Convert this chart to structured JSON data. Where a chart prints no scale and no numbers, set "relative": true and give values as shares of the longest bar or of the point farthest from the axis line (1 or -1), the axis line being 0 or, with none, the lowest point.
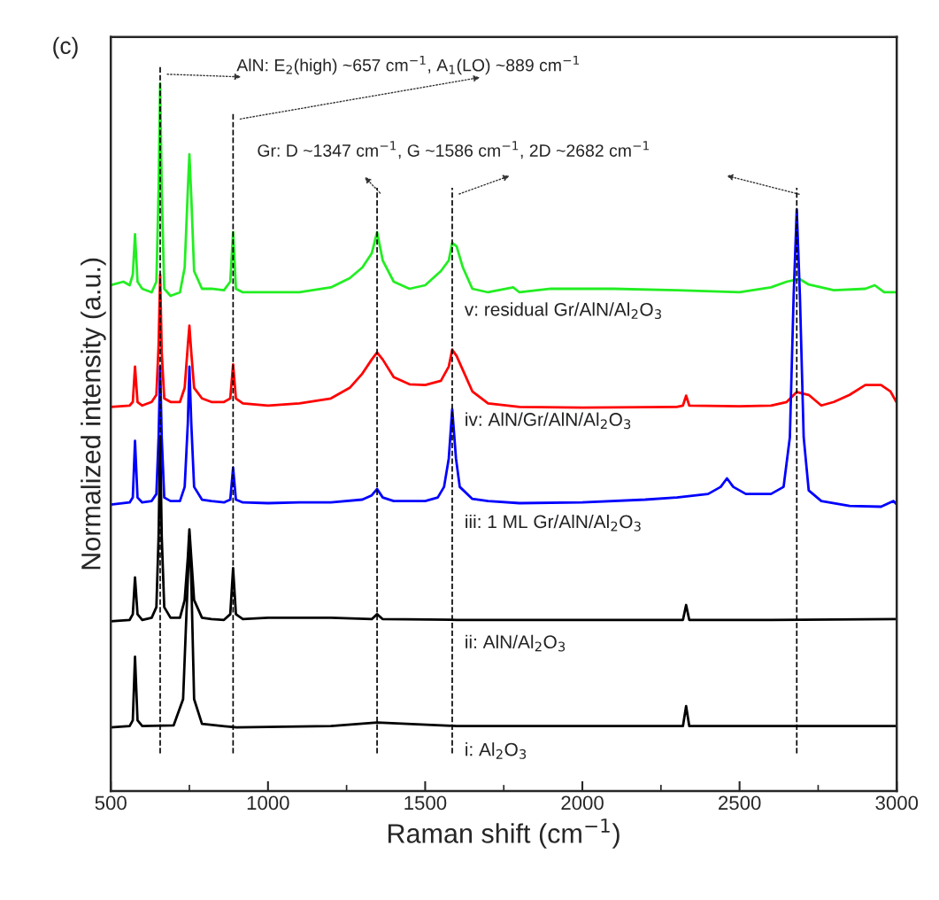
{
  "chart_data": {
    "type": "line",
    "relative": true,
    "xlabel": "Raman shift (cm$^{−1}$)",
    "ylabel": "Normalized intensity (a.u.)",
    "xlim": [
      500,
      3000
    ],
    "xticks": [
      500,
      1000,
      1500,
      2000,
      2500,
      3000
    ],
    "tick_labels": "x",
    "annotations": [
      "(c)",
      "AlN: E$_{2}$(high) ~657 cm$^{−1}$, A$_{1}$(LO) ~889 cm$^{−1}$",
      "Gr: D ~1347 cm$^{−1}$, G ~1586 cm$^{−1}$, 2D ~2682 cm$^{−1}$"
    ],
    "ref_lines": [
      {
        "axis": "x",
        "value": 657,
        "line_style": "dashed",
        "color": "#000000"
      },
      {
        "axis": "x",
        "value": 889,
        "line_style": "dashed",
        "color": "#000000"
      },
      {
        "axis": "x",
        "value": 1347,
        "line_style": "dashed",
        "color": "#000000"
      },
      {
        "axis": "x",
        "value": 1586,
        "line_style": "dashed",
        "color": "#000000"
      },
      {
        "axis": "x",
        "value": 2682,
        "line_style": "dashed",
        "color": "#000000"
      }
    ],
    "series": [
      {
        "name": "v: residual Gr/AlN/Al$_{2}$O$_{3}$",
        "color": "#22ee22",
        "x": [
          500,
          540,
          560,
          570,
          577,
          585,
          600,
          630,
          645,
          652,
          657,
          662,
          670,
          690,
          720,
          735,
          745,
          750,
          756,
          765,
          790,
          820,
          860,
          880,
          889,
          898,
          920,
          1000,
          1100,
          1200,
          1260,
          1300,
          1330,
          1347,
          1365,
          1400,
          1450,
          1500,
          1550,
          1575,
          1586,
          1600,
          1620,
          1650,
          1700,
          1780,
          1800,
          1900,
          2100,
          2300,
          2500,
          2600,
          2650,
          2690,
          2720,
          2800,
          2900,
          2930,
          2960,
          3000
        ],
        "values": [
          0.715,
          0.72,
          0.715,
          0.73,
          0.787,
          0.72,
          0.71,
          0.705,
          0.72,
          0.85,
          1.0,
          0.85,
          0.71,
          0.7,
          0.705,
          0.74,
          0.85,
          0.9,
          0.84,
          0.735,
          0.71,
          0.71,
          0.708,
          0.72,
          0.79,
          0.71,
          0.705,
          0.705,
          0.705,
          0.712,
          0.725,
          0.74,
          0.76,
          0.79,
          0.75,
          0.72,
          0.71,
          0.715,
          0.735,
          0.75,
          0.775,
          0.77,
          0.74,
          0.71,
          0.705,
          0.712,
          0.705,
          0.71,
          0.71,
          0.708,
          0.705,
          0.712,
          0.72,
          0.724,
          0.716,
          0.708,
          0.71,
          0.715,
          0.705,
          0.705
        ]
      },
      {
        "name": "iv: AlN/Gr/AlN/Al$_{2}$O$_{3}$",
        "color": "#ff0000",
        "x": [
          500,
          560,
          570,
          577,
          585,
          600,
          630,
          645,
          652,
          657,
          662,
          670,
          690,
          720,
          735,
          745,
          750,
          756,
          765,
          790,
          820,
          860,
          880,
          889,
          898,
          920,
          1000,
          1100,
          1200,
          1260,
          1300,
          1330,
          1347,
          1365,
          1400,
          1450,
          1500,
          1550,
          1575,
          1586,
          1600,
          1620,
          1650,
          1700,
          1800,
          2000,
          2300,
          2320,
          2330,
          2340,
          2500,
          2600,
          2650,
          2682,
          2720,
          2760,
          2800,
          2850,
          2900,
          2950,
          2980,
          3000
        ],
        "values": [
          0.543,
          0.545,
          0.55,
          0.6,
          0.55,
          0.545,
          0.55,
          0.56,
          0.63,
          0.73,
          0.62,
          0.555,
          0.55,
          0.55,
          0.57,
          0.63,
          0.658,
          0.62,
          0.57,
          0.555,
          0.55,
          0.55,
          0.555,
          0.603,
          0.555,
          0.548,
          0.545,
          0.548,
          0.555,
          0.57,
          0.59,
          0.61,
          0.62,
          0.61,
          0.585,
          0.575,
          0.574,
          0.58,
          0.6,
          0.624,
          0.615,
          0.595,
          0.565,
          0.548,
          0.543,
          0.542,
          0.543,
          0.545,
          0.559,
          0.545,
          0.544,
          0.545,
          0.55,
          0.564,
          0.56,
          0.545,
          0.55,
          0.56,
          0.574,
          0.574,
          0.565,
          0.549
        ]
      },
      {
        "name": "iii: 1 ML Gr/AlN/Al$_{2}$O$_{3}$",
        "color": "#0000ff",
        "x": [
          500,
          560,
          570,
          577,
          585,
          600,
          630,
          645,
          652,
          657,
          662,
          670,
          690,
          720,
          735,
          745,
          750,
          756,
          765,
          790,
          820,
          860,
          880,
          889,
          898,
          920,
          1000,
          1100,
          1200,
          1300,
          1330,
          1347,
          1365,
          1400,
          1500,
          1540,
          1560,
          1575,
          1586,
          1598,
          1610,
          1650,
          1700,
          1800,
          2000,
          2200,
          2300,
          2400,
          2440,
          2460,
          2480,
          2520,
          2600,
          2640,
          2660,
          2672,
          2682,
          2692,
          2704,
          2720,
          2760,
          2850,
          2950,
          2990,
          3000
        ],
        "values": [
          0.405,
          0.408,
          0.415,
          0.495,
          0.415,
          0.408,
          0.41,
          0.42,
          0.5,
          0.6,
          0.5,
          0.415,
          0.41,
          0.41,
          0.43,
          0.52,
          0.6,
          0.52,
          0.43,
          0.412,
          0.41,
          0.408,
          0.412,
          0.457,
          0.412,
          0.408,
          0.407,
          0.408,
          0.408,
          0.412,
          0.418,
          0.427,
          0.415,
          0.41,
          0.41,
          0.415,
          0.43,
          0.47,
          0.54,
          0.47,
          0.43,
          0.413,
          0.41,
          0.407,
          0.408,
          0.412,
          0.415,
          0.42,
          0.43,
          0.442,
          0.43,
          0.42,
          0.42,
          0.43,
          0.5,
          0.7,
          0.822,
          0.7,
          0.5,
          0.425,
          0.41,
          0.403,
          0.402,
          0.41,
          0.405
        ]
      },
      {
        "name": "ii: AlN/Al$_{2}$O$_{3}$",
        "color": "#000000",
        "x": [
          500,
          560,
          570,
          577,
          585,
          600,
          630,
          645,
          652,
          657,
          662,
          670,
          690,
          720,
          735,
          745,
          750,
          756,
          765,
          790,
          820,
          860,
          880,
          889,
          898,
          920,
          1000,
          1200,
          1330,
          1347,
          1365,
          1600,
          2000,
          2320,
          2330,
          2340,
          2600,
          3000
        ],
        "values": [
          0.24,
          0.242,
          0.25,
          0.302,
          0.25,
          0.242,
          0.245,
          0.26,
          0.36,
          0.5,
          0.36,
          0.26,
          0.245,
          0.245,
          0.27,
          0.33,
          0.37,
          0.33,
          0.27,
          0.245,
          0.243,
          0.242,
          0.25,
          0.315,
          0.25,
          0.243,
          0.245,
          0.245,
          0.243,
          0.25,
          0.243,
          0.242,
          0.242,
          0.242,
          0.263,
          0.242,
          0.242,
          0.243
        ]
      },
      {
        "name": "i: Al$_{2}$O$_{3}$",
        "color": "#000000",
        "x": [
          500,
          560,
          570,
          577,
          585,
          600,
          700,
          730,
          745,
          750,
          756,
          765,
          790,
          900,
          1200,
          1347,
          1600,
          2000,
          2320,
          2330,
          2340,
          2600,
          3000
        ],
        "values": [
          0.09,
          0.092,
          0.1,
          0.19,
          0.1,
          0.092,
          0.093,
          0.13,
          0.3,
          0.36,
          0.3,
          0.13,
          0.095,
          0.09,
          0.092,
          0.097,
          0.092,
          0.092,
          0.092,
          0.12,
          0.092,
          0.092,
          0.092
        ]
      }
    ]
  }
}
